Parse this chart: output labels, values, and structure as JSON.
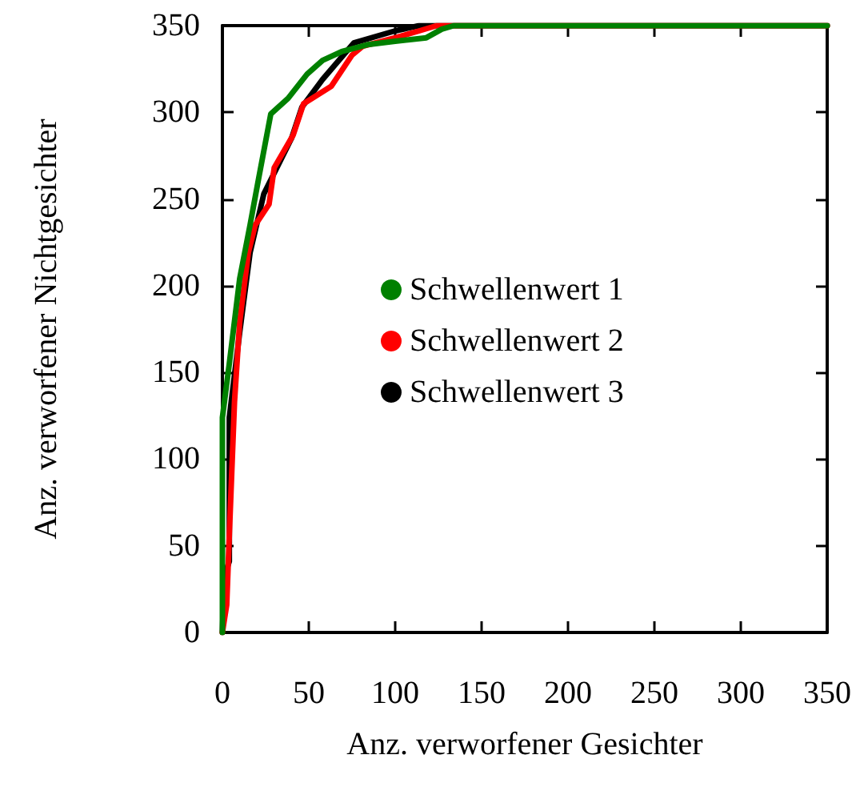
{
  "chart_data": {
    "type": "line",
    "xlabel": "Anz. verworfener Gesichter",
    "ylabel": "Anz. verworfener Nichtgesichter",
    "xlim": [
      0,
      350
    ],
    "ylim": [
      0,
      350
    ],
    "xticks": [
      0,
      50,
      100,
      150,
      200,
      250,
      300,
      350
    ],
    "yticks": [
      0,
      50,
      100,
      150,
      200,
      250,
      300,
      350
    ],
    "grid": false,
    "legend": "right",
    "marker": "none",
    "line_style": "solid",
    "series": [
      {
        "name": "Schwellenwert 1",
        "color": "#008000",
        "x": [
          0,
          0,
          4,
          10,
          16,
          21,
          28,
          38,
          49,
          58,
          69,
          84,
          100,
          118,
          127,
          134,
          350
        ],
        "values": [
          0,
          124,
          155,
          204,
          235,
          262,
          299,
          308,
          322,
          330,
          335,
          339,
          341,
          343,
          348,
          350,
          350
        ]
      },
      {
        "name": "Schwellenwert 2",
        "color": "#ff0000",
        "x": [
          0,
          2.5,
          4,
          7,
          10,
          15,
          19,
          27,
          30,
          41,
          47,
          63,
          75,
          81,
          100,
          114,
          124,
          350
        ],
        "values": [
          0,
          16,
          56,
          133,
          179,
          219,
          235,
          247,
          268,
          287,
          305,
          315,
          333,
          338,
          343,
          347,
          350,
          350
        ]
      },
      {
        "name": "Schwellenwert 3",
        "color": "#000000",
        "x": [
          0,
          1,
          4,
          4,
          10,
          16,
          24,
          40,
          46,
          58,
          76,
          100,
          114,
          350
        ],
        "values": [
          0,
          32,
          41,
          124,
          173,
          219,
          253,
          285,
          303,
          319,
          340,
          347,
          350,
          350
        ]
      }
    ]
  }
}
